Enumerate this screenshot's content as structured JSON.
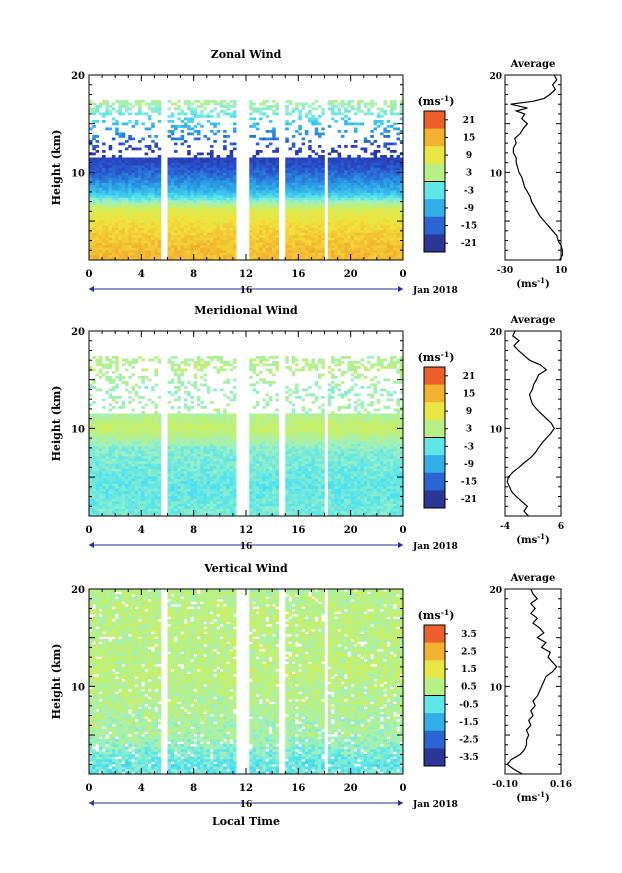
{
  "chart_data": [
    {
      "type": "heatmap",
      "title": "Zonal Wind",
      "ylabel": "Height (km)",
      "ylim": [
        1,
        20
      ],
      "yticks": [
        "20",
        "10"
      ],
      "xticks": [
        "0",
        "4",
        "8",
        "12",
        "16",
        "20",
        "0"
      ],
      "xlim": [
        0,
        24
      ],
      "date_label": "16",
      "month_label": "Jan 2018",
      "colorbar": {
        "unit": "(ms",
        "unit_exp": "-1",
        "unit_close": ")",
        "ticks": [
          "21",
          "15",
          "9",
          "3",
          "-3",
          "-9",
          "-15",
          "-21"
        ],
        "range": [
          -24,
          24
        ]
      },
      "gaps_hours": [
        [
          5.5,
          6.1
        ],
        [
          11.3,
          12.3
        ],
        [
          14.6,
          14.9
        ],
        [
          17.9,
          18.3
        ]
      ],
      "profile_summary": [
        {
          "h": 2,
          "v": 14
        },
        {
          "h": 4,
          "v": 12
        },
        {
          "h": 6,
          "v": 8
        },
        {
          "h": 8,
          "v": -8
        },
        {
          "h": 10,
          "v": -15
        },
        {
          "h": 12,
          "v": -20
        },
        {
          "h": 14,
          "v": -12
        },
        {
          "h": 16,
          "v": -2
        },
        {
          "h": 18,
          "v": 4
        }
      ],
      "average": {
        "title": "Average",
        "yticks": [
          "20",
          "10"
        ],
        "xticks": [
          "-30",
          "10"
        ],
        "xlim": [
          -30,
          10
        ],
        "xlabel": "(ms",
        "xlabel_exp": "-1",
        "xlabel_close": ")",
        "profile": [
          {
            "h": 1.0,
            "v": 9
          },
          {
            "h": 1.5,
            "v": 11
          },
          {
            "h": 2.0,
            "v": 11
          },
          {
            "h": 2.5,
            "v": 10
          },
          {
            "h": 3.0,
            "v": 8
          },
          {
            "h": 3.5,
            "v": 7
          },
          {
            "h": 4.0,
            "v": 4
          },
          {
            "h": 4.5,
            "v": 1
          },
          {
            "h": 5.0,
            "v": -2
          },
          {
            "h": 5.5,
            "v": -5
          },
          {
            "h": 6.0,
            "v": -7
          },
          {
            "h": 6.5,
            "v": -9
          },
          {
            "h": 7.0,
            "v": -11
          },
          {
            "h": 7.5,
            "v": -12
          },
          {
            "h": 8.0,
            "v": -14
          },
          {
            "h": 8.5,
            "v": -16
          },
          {
            "h": 9.0,
            "v": -17
          },
          {
            "h": 9.5,
            "v": -18
          },
          {
            "h": 10.0,
            "v": -20
          },
          {
            "h": 10.5,
            "v": -21
          },
          {
            "h": 11.0,
            "v": -22
          },
          {
            "h": 11.5,
            "v": -22
          },
          {
            "h": 12.0,
            "v": -24
          },
          {
            "h": 12.5,
            "v": -24
          },
          {
            "h": 13.0,
            "v": -22
          },
          {
            "h": 13.5,
            "v": -23
          },
          {
            "h": 14.0,
            "v": -19
          },
          {
            "h": 14.5,
            "v": -17
          },
          {
            "h": 15.0,
            "v": -14
          },
          {
            "h": 15.5,
            "v": -18
          },
          {
            "h": 16.0,
            "v": -16
          },
          {
            "h": 16.3,
            "v": -22
          },
          {
            "h": 16.6,
            "v": -14
          },
          {
            "h": 17.0,
            "v": -26
          },
          {
            "h": 17.3,
            "v": -10
          },
          {
            "h": 17.6,
            "v": -2
          },
          {
            "h": 18.0,
            "v": 2
          },
          {
            "h": 18.5,
            "v": 6
          },
          {
            "h": 19.0,
            "v": 4
          },
          {
            "h": 19.5,
            "v": 7
          },
          {
            "h": 20.0,
            "v": 5
          }
        ]
      }
    },
    {
      "type": "heatmap",
      "title": "Meridional Wind",
      "ylabel": "Height (km)",
      "ylim": [
        1,
        20
      ],
      "yticks": [
        "20",
        "10"
      ],
      "xticks": [
        "0",
        "4",
        "8",
        "12",
        "16",
        "20",
        "0"
      ],
      "xlim": [
        0,
        24
      ],
      "date_label": "16",
      "month_label": "Jan 2018",
      "colorbar": {
        "unit": "(ms",
        "unit_exp": "-1",
        "unit_close": ")",
        "ticks": [
          "21",
          "15",
          "9",
          "3",
          "-3",
          "-9",
          "-15",
          "-21"
        ],
        "range": [
          -24,
          24
        ]
      },
      "gaps_hours": [
        [
          5.5,
          6.1
        ],
        [
          11.3,
          12.3
        ],
        [
          14.6,
          14.9
        ],
        [
          17.9,
          18.3
        ]
      ],
      "profile_summary": [
        {
          "h": 2,
          "v": -2
        },
        {
          "h": 4,
          "v": -3
        },
        {
          "h": 6,
          "v": -2
        },
        {
          "h": 8,
          "v": -1
        },
        {
          "h": 10,
          "v": 5
        },
        {
          "h": 12,
          "v": 1
        },
        {
          "h": 14,
          "v": 0
        },
        {
          "h": 16,
          "v": 3
        },
        {
          "h": 18,
          "v": 2
        }
      ],
      "average": {
        "title": "Average",
        "yticks": [
          "20",
          "10"
        ],
        "xticks": [
          "-4",
          "6"
        ],
        "xlim": [
          -4,
          6
        ],
        "xlabel": "(ms",
        "xlabel_exp": "-1",
        "xlabel_close": ")",
        "profile": [
          {
            "h": 1.0,
            "v": 0.2
          },
          {
            "h": 1.5,
            "v": -0.6
          },
          {
            "h": 2.0,
            "v": 0.0
          },
          {
            "h": 2.5,
            "v": -1.0
          },
          {
            "h": 3.0,
            "v": -2.0
          },
          {
            "h": 3.5,
            "v": -2.8
          },
          {
            "h": 4.0,
            "v": -3.2
          },
          {
            "h": 4.5,
            "v": -3.6
          },
          {
            "h": 5.0,
            "v": -3.4
          },
          {
            "h": 5.5,
            "v": -2.6
          },
          {
            "h": 6.0,
            "v": -1.5
          },
          {
            "h": 6.5,
            "v": -0.5
          },
          {
            "h": 7.0,
            "v": 0.6
          },
          {
            "h": 7.5,
            "v": 1.4
          },
          {
            "h": 8.0,
            "v": 2.0
          },
          {
            "h": 8.5,
            "v": 2.6
          },
          {
            "h": 9.0,
            "v": 3.4
          },
          {
            "h": 9.5,
            "v": 4.2
          },
          {
            "h": 10.0,
            "v": 4.8
          },
          {
            "h": 10.5,
            "v": 4.3
          },
          {
            "h": 11.0,
            "v": 3.4
          },
          {
            "h": 11.5,
            "v": 2.5
          },
          {
            "h": 12.0,
            "v": 1.6
          },
          {
            "h": 12.5,
            "v": 0.9
          },
          {
            "h": 13.0,
            "v": 0.6
          },
          {
            "h": 13.5,
            "v": 0.4
          },
          {
            "h": 14.0,
            "v": 0.9
          },
          {
            "h": 14.5,
            "v": 1.1
          },
          {
            "h": 15.0,
            "v": 1.6
          },
          {
            "h": 15.5,
            "v": 2.0
          },
          {
            "h": 16.0,
            "v": 3.4
          },
          {
            "h": 16.5,
            "v": 2.4
          },
          {
            "h": 17.0,
            "v": 0.4
          },
          {
            "h": 17.5,
            "v": -0.6
          },
          {
            "h": 18.0,
            "v": -1.6
          },
          {
            "h": 18.5,
            "v": -2.4
          },
          {
            "h": 19.0,
            "v": -1.5
          },
          {
            "h": 19.5,
            "v": -2.6
          },
          {
            "h": 20.0,
            "v": -2.2
          }
        ]
      }
    },
    {
      "type": "heatmap",
      "title": "Vertical Wind",
      "ylabel": "Height (km)",
      "ylim": [
        1,
        20
      ],
      "yticks": [
        "20",
        "10"
      ],
      "xticks": [
        "0",
        "4",
        "8",
        "12",
        "16",
        "20",
        "0"
      ],
      "xlim": [
        0,
        24
      ],
      "date_label": "16",
      "month_label": "Jan 2018",
      "xlabel": "Local Time",
      "colorbar": {
        "unit": "(ms",
        "unit_exp": "-1",
        "unit_close": ")",
        "ticks": [
          "3.5",
          "2.5",
          "1.5",
          "0.5",
          "-0.5",
          "-1.5",
          "-2.5",
          "-3.5"
        ],
        "range": [
          -4,
          4
        ]
      },
      "gaps_hours": [
        [
          5.5,
          6.1
        ],
        [
          11.3,
          12.3
        ],
        [
          14.6,
          14.9
        ],
        [
          17.9,
          18.3
        ]
      ],
      "profile_summary": [
        {
          "h": 2,
          "v": -0.5
        },
        {
          "h": 5,
          "v": 0.2
        },
        {
          "h": 8,
          "v": 0.4
        },
        {
          "h": 11,
          "v": 0.6
        },
        {
          "h": 14,
          "v": 0.5
        },
        {
          "h": 17,
          "v": 0.6
        },
        {
          "h": 20,
          "v": 0.4
        }
      ],
      "average": {
        "title": "Average",
        "yticks": [
          "20",
          "10"
        ],
        "xticks": [
          "-0.10",
          "0.16"
        ],
        "xlim": [
          -0.1,
          0.16
        ],
        "xlabel": "(ms",
        "xlabel_exp": "-1",
        "xlabel_close": ")",
        "profile": [
          {
            "h": 1.0,
            "v": -0.02
          },
          {
            "h": 1.5,
            "v": -0.06
          },
          {
            "h": 2.0,
            "v": -0.09
          },
          {
            "h": 2.5,
            "v": -0.07
          },
          {
            "h": 3.0,
            "v": -0.03
          },
          {
            "h": 3.5,
            "v": -0.01
          },
          {
            "h": 4.0,
            "v": 0.0
          },
          {
            "h": 4.5,
            "v": 0.0
          },
          {
            "h": 5.0,
            "v": 0.01
          },
          {
            "h": 5.5,
            "v": 0.0
          },
          {
            "h": 6.0,
            "v": 0.02
          },
          {
            "h": 6.5,
            "v": 0.01
          },
          {
            "h": 7.0,
            "v": 0.03
          },
          {
            "h": 7.5,
            "v": 0.02
          },
          {
            "h": 8.0,
            "v": 0.04
          },
          {
            "h": 8.5,
            "v": 0.03
          },
          {
            "h": 9.0,
            "v": 0.05
          },
          {
            "h": 9.5,
            "v": 0.06
          },
          {
            "h": 10.0,
            "v": 0.07
          },
          {
            "h": 10.5,
            "v": 0.08
          },
          {
            "h": 11.0,
            "v": 0.09
          },
          {
            "h": 11.5,
            "v": 0.12
          },
          {
            "h": 12.0,
            "v": 0.14
          },
          {
            "h": 12.5,
            "v": 0.12
          },
          {
            "h": 13.0,
            "v": 0.1
          },
          {
            "h": 13.5,
            "v": 0.11
          },
          {
            "h": 14.0,
            "v": 0.07
          },
          {
            "h": 14.5,
            "v": 0.09
          },
          {
            "h": 15.0,
            "v": 0.05
          },
          {
            "h": 15.5,
            "v": 0.08
          },
          {
            "h": 16.0,
            "v": 0.06
          },
          {
            "h": 16.5,
            "v": 0.03
          },
          {
            "h": 17.0,
            "v": 0.05
          },
          {
            "h": 17.5,
            "v": 0.02
          },
          {
            "h": 18.0,
            "v": 0.04
          },
          {
            "h": 18.5,
            "v": 0.02
          },
          {
            "h": 19.0,
            "v": 0.05
          },
          {
            "h": 19.5,
            "v": 0.03
          },
          {
            "h": 20.0,
            "v": 0.02
          }
        ]
      }
    }
  ]
}
